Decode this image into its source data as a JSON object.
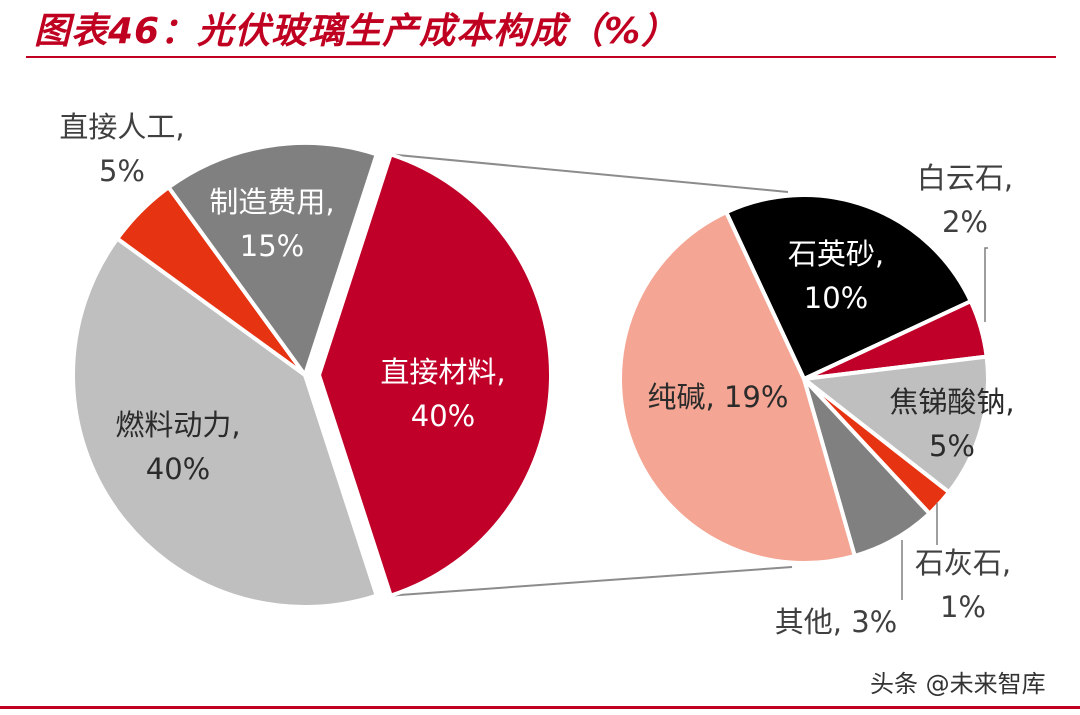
{
  "title": "图表46：光伏玻璃生产成本构成（%）",
  "watermark": "头条 @未来智库",
  "chart_data": [
    {
      "type": "pie",
      "slices": [
        {
          "label": "直接材料",
          "value": 40,
          "color": "#C00028"
        },
        {
          "label": "燃料动力",
          "value": 40,
          "color": "#BFBFBF"
        },
        {
          "label": "直接人工",
          "value": 5,
          "color": "#E63312"
        },
        {
          "label": "制造费用",
          "value": 15,
          "color": "#808080"
        }
      ]
    },
    {
      "type": "pie",
      "note_of": "直接材料",
      "slices": [
        {
          "label": "石英砂",
          "value": 10,
          "color": "#000000"
        },
        {
          "label": "白云石",
          "value": 2,
          "color": "#C00028"
        },
        {
          "label": "焦锑酸钠",
          "value": 5,
          "color": "#BFBFBF"
        },
        {
          "label": "石灰石",
          "value": 1,
          "color": "#E63312"
        },
        {
          "label": "其他",
          "value": 3,
          "color": "#808080"
        },
        {
          "label": "纯碱",
          "value": 19,
          "color": "#F4A593"
        }
      ]
    }
  ]
}
